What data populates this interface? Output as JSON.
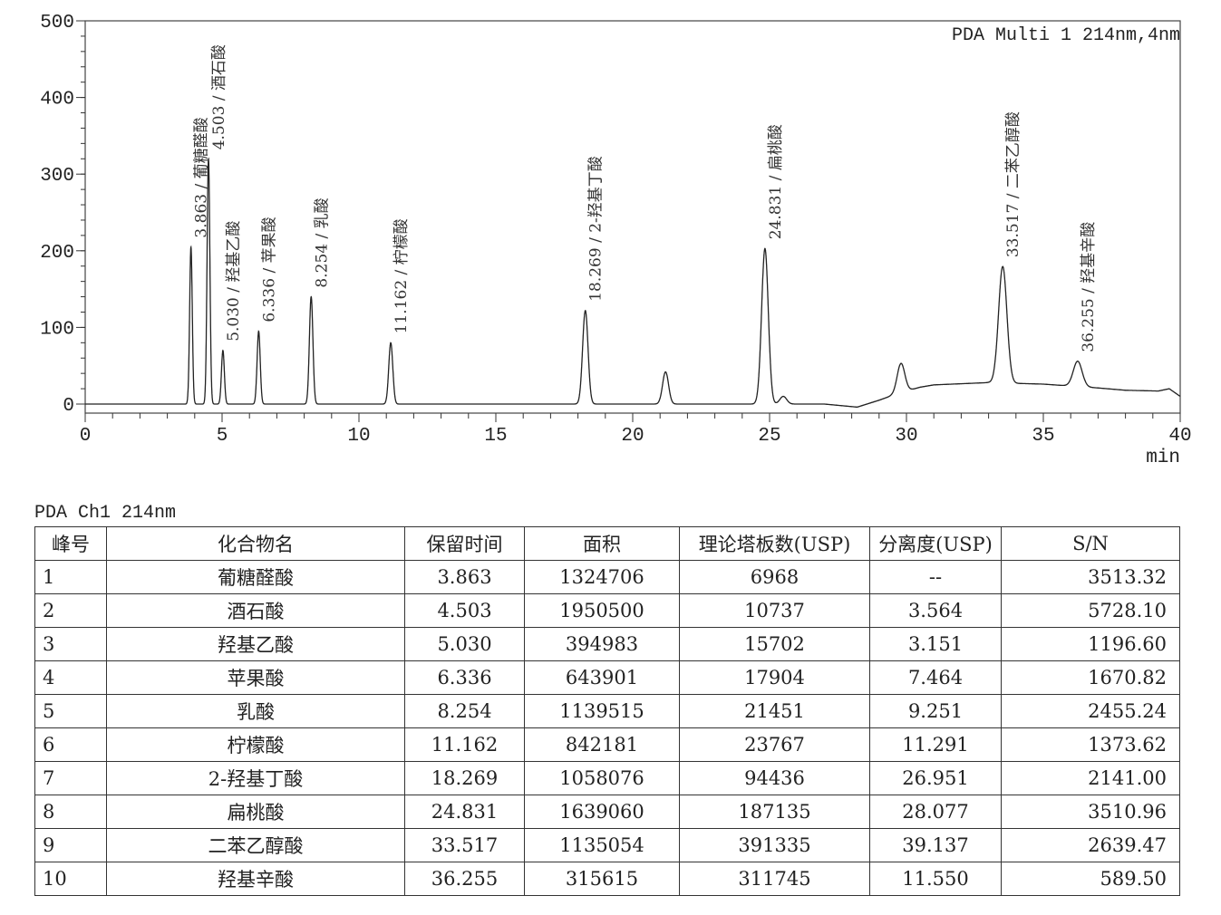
{
  "chart_data": {
    "type": "line",
    "title": "PDA Multi 1 214nm,4nm",
    "xlabel": "min",
    "ylabel": "",
    "xlim": [
      0,
      40
    ],
    "ylim": [
      0,
      500
    ],
    "xticks": [
      0,
      5,
      10,
      15,
      20,
      25,
      30,
      35,
      40
    ],
    "yticks": [
      0,
      100,
      200,
      300,
      400,
      500
    ],
    "grid": false,
    "peaks": [
      {
        "t": 3.863,
        "h": 205,
        "label": "3.863 / 葡糖醛酸"
      },
      {
        "t": 4.503,
        "h": 320,
        "label": "4.503 / 酒石酸"
      },
      {
        "t": 5.03,
        "h": 70,
        "label": "5.030 / 羟基乙酸"
      },
      {
        "t": 6.336,
        "h": 95,
        "label": "6.336 / 苹果酸"
      },
      {
        "t": 8.254,
        "h": 140,
        "label": "8.254 / 乳酸"
      },
      {
        "t": 11.162,
        "h": 80,
        "label": "11.162 / 柠檬酸"
      },
      {
        "t": 18.269,
        "h": 122,
        "label": "18.269 / 2-羟基丁酸"
      },
      {
        "t": 21.2,
        "h": 42,
        "label": ""
      },
      {
        "t": 24.831,
        "h": 203,
        "label": "24.831 / 扁桃酸"
      },
      {
        "t": 25.5,
        "h": 10,
        "label": ""
      },
      {
        "t": 29.8,
        "h": 38,
        "label": ""
      },
      {
        "t": 33.517,
        "h": 152,
        "label": "33.517 / 二苯乙醇酸"
      },
      {
        "t": 36.255,
        "h": 33,
        "label": "36.255 / 羟基辛酸"
      }
    ],
    "baseline": [
      [
        0,
        0
      ],
      [
        3.5,
        0
      ],
      [
        27,
        0
      ],
      [
        28.2,
        -4
      ],
      [
        29,
        5
      ],
      [
        29.7,
        14
      ],
      [
        30.5,
        22
      ],
      [
        31,
        25
      ],
      [
        33,
        28
      ],
      [
        35,
        26
      ],
      [
        37,
        21
      ],
      [
        38,
        18
      ],
      [
        39.2,
        17
      ],
      [
        39.6,
        20
      ],
      [
        40,
        10
      ]
    ]
  },
  "table": {
    "caption": "PDA Ch1 214nm",
    "headers": [
      "峰号",
      "化合物名",
      "保留时间",
      "面积",
      "理论塔板数(USP)",
      "分离度(USP)",
      "S/N"
    ],
    "rows": [
      [
        "1",
        "葡糖醛酸",
        "3.863",
        "1324706",
        "6968",
        "--",
        "3513.32"
      ],
      [
        "2",
        "酒石酸",
        "4.503",
        "1950500",
        "10737",
        "3.564",
        "5728.10"
      ],
      [
        "3",
        "羟基乙酸",
        "5.030",
        "394983",
        "15702",
        "3.151",
        "1196.60"
      ],
      [
        "4",
        "苹果酸",
        "6.336",
        "643901",
        "17904",
        "7.464",
        "1670.82"
      ],
      [
        "5",
        "乳酸",
        "8.254",
        "1139515",
        "21451",
        "9.251",
        "2455.24"
      ],
      [
        "6",
        "柠檬酸",
        "11.162",
        "842181",
        "23767",
        "11.291",
        "1373.62"
      ],
      [
        "7",
        "2-羟基丁酸",
        "18.269",
        "1058076",
        "94436",
        "26.951",
        "2141.00"
      ],
      [
        "8",
        "扁桃酸",
        "24.831",
        "1639060",
        "187135",
        "28.077",
        "3510.96"
      ],
      [
        "9",
        "二苯乙醇酸",
        "33.517",
        "1135054",
        "391335",
        "39.137",
        "2639.47"
      ],
      [
        "10",
        "羟基辛酸",
        "36.255",
        "315615",
        "311745",
        "11.550",
        "589.50"
      ]
    ]
  }
}
